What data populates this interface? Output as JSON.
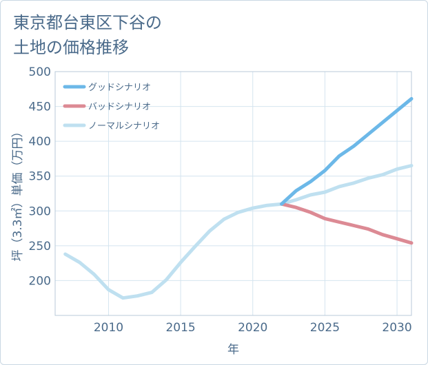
{
  "title": {
    "line1": "東京都台東区下谷の",
    "line2": "土地の価格推移"
  },
  "chart_data": {
    "type": "line",
    "xlabel": "年",
    "ylabel": "坪（3.3㎡）単価（万円）",
    "xlim": [
      2006.3,
      2031
    ],
    "ylim": [
      150,
      500
    ],
    "x_ticks": [
      2010,
      2015,
      2020,
      2025,
      2030
    ],
    "y_ticks": [
      200,
      250,
      300,
      350,
      400,
      450,
      500
    ],
    "grid": true,
    "legend_position": "top-left",
    "series": [
      {
        "name": "グッドシナリオ",
        "color": "#6cb8e8",
        "width": 5,
        "points": [
          [
            2022,
            310
          ],
          [
            2023,
            329
          ],
          [
            2024,
            342
          ],
          [
            2025,
            358
          ],
          [
            2026,
            379
          ],
          [
            2027,
            393
          ],
          [
            2028,
            410
          ],
          [
            2029,
            427
          ],
          [
            2030,
            444
          ],
          [
            2031,
            461
          ]
        ]
      },
      {
        "name": "バッドシナリオ",
        "color": "#dc8a94",
        "width": 5,
        "points": [
          [
            2022,
            310
          ],
          [
            2023,
            305
          ],
          [
            2024,
            298
          ],
          [
            2025,
            289
          ],
          [
            2026,
            284
          ],
          [
            2027,
            279
          ],
          [
            2028,
            274
          ],
          [
            2029,
            266
          ],
          [
            2030,
            260
          ],
          [
            2031,
            254
          ]
        ]
      },
      {
        "name": "ノーマルシナリオ",
        "color": "#bfe0f0",
        "width": 5,
        "points": [
          [
            2007,
            238
          ],
          [
            2008,
            226
          ],
          [
            2009,
            209
          ],
          [
            2010,
            187
          ],
          [
            2011,
            175
          ],
          [
            2012,
            178
          ],
          [
            2013,
            183
          ],
          [
            2014,
            201
          ],
          [
            2015,
            226
          ],
          [
            2016,
            249
          ],
          [
            2017,
            271
          ],
          [
            2018,
            288
          ],
          [
            2019,
            298
          ],
          [
            2020,
            304
          ],
          [
            2021,
            308
          ],
          [
            2022,
            310
          ],
          [
            2023,
            316
          ],
          [
            2024,
            323
          ],
          [
            2025,
            327
          ],
          [
            2026,
            335
          ],
          [
            2027,
            340
          ],
          [
            2028,
            347
          ],
          [
            2029,
            352
          ],
          [
            2030,
            360
          ],
          [
            2031,
            365
          ]
        ]
      }
    ]
  }
}
